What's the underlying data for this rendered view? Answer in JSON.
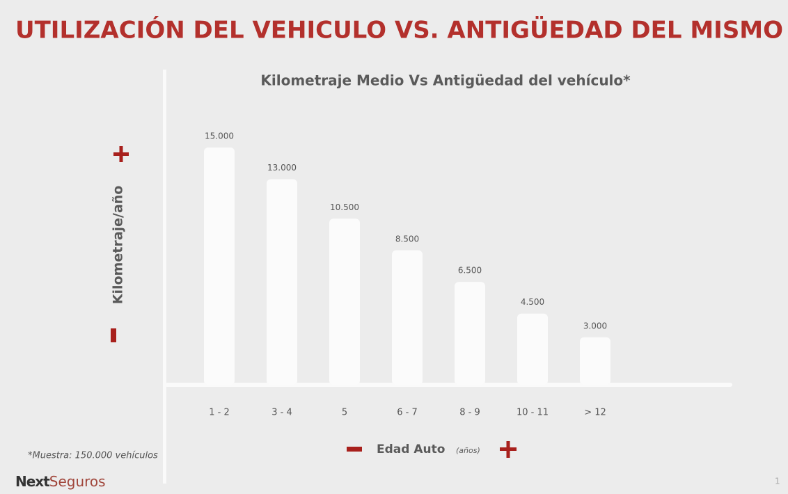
{
  "slide": {
    "title": "UTILIZACIÓN DEL VEHICULO VS. ANTIGÜEDAD DEL MISMO",
    "footnote": "*Muestra: 150.000 vehículos",
    "logo": {
      "first": "Next",
      "second": "Seguros"
    },
    "page_number": "1"
  },
  "chart_data": {
    "type": "bar",
    "title": "Kilometraje Medio Vs Antigüedad del vehículo*",
    "y_label": "Kilometraje/año",
    "x_label": "Edad Auto",
    "x_label_unit": "(años)",
    "categories": [
      "1 - 2",
      "3 - 4",
      "5",
      "6 - 7",
      "8 - 9",
      "10 - 11",
      "> 12"
    ],
    "values": [
      15000,
      13000,
      10500,
      8500,
      6500,
      4500,
      3000
    ],
    "value_labels": [
      "15.000",
      "13.000",
      "10.500",
      "8.500",
      "6.500",
      "4.500",
      "3.000"
    ],
    "color": "#fbfbfb"
  }
}
